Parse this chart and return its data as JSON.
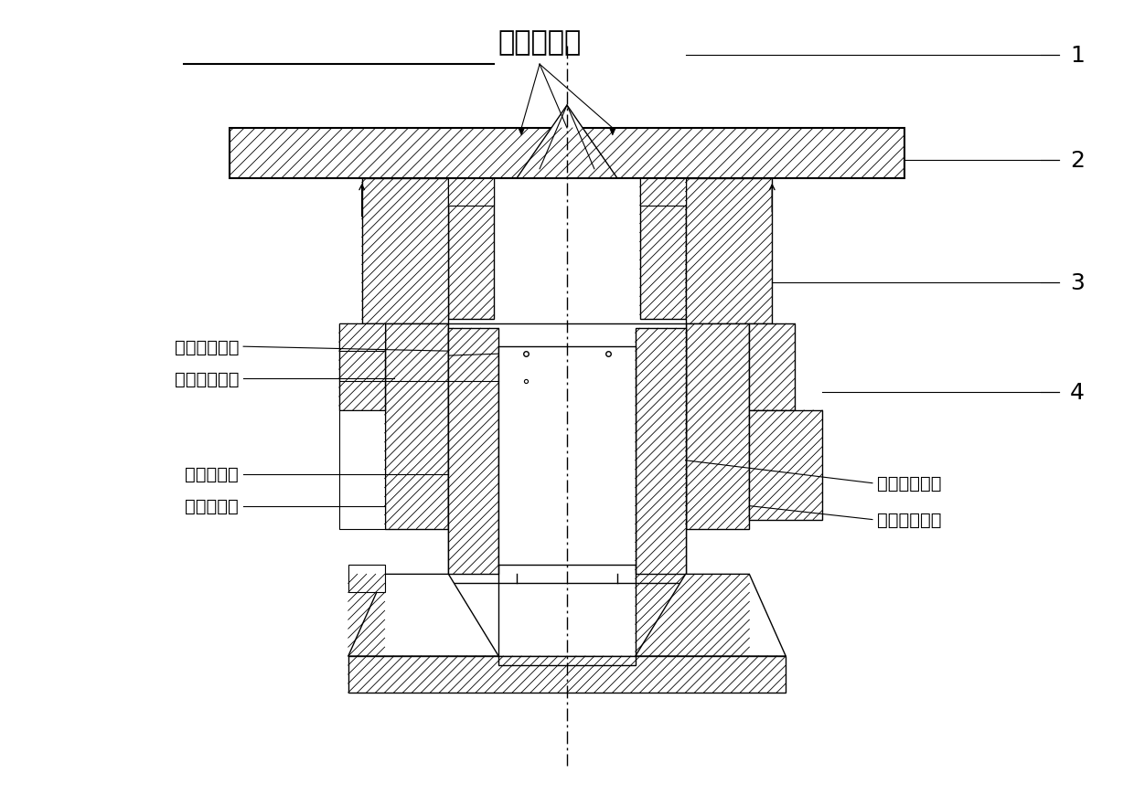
{
  "title": "电子束焊缝",
  "bg_color": "#ffffff",
  "line_color": "#000000",
  "hatch_color": "#000000",
  "labels_left": [
    "内喷嘴切向孔",
    "外喷嘴切向孔",
    "内喷嘴喷口",
    "外喷嘴喷口"
  ],
  "labels_right": [
    "内喷嘴旋流腔",
    "外喷嘴旋流腔"
  ],
  "numbers": [
    "1",
    "2",
    "3",
    "4"
  ],
  "fig_width": 12.4,
  "fig_height": 8.7,
  "dpi": 100
}
